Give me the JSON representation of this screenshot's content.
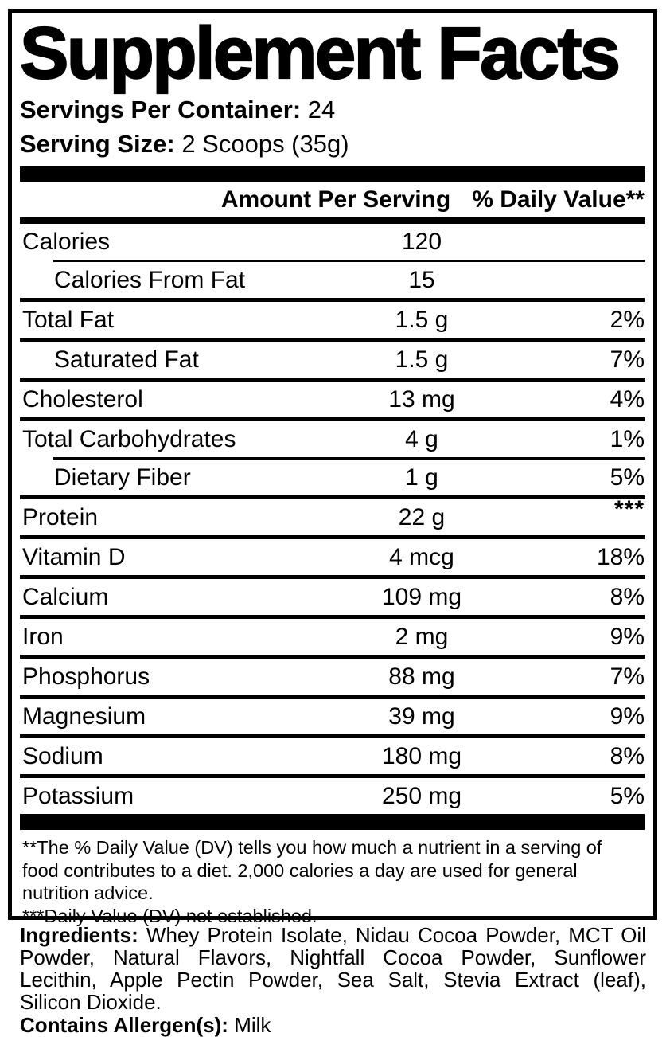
{
  "colors": {
    "text": "#000000",
    "background": "#ffffff"
  },
  "panel": {
    "title": "Supplement Facts",
    "servings_per_container_label": "Servings Per Container:",
    "servings_per_container_value": "24",
    "serving_size_label": "Serving Size:",
    "serving_size_value": "2 Scoops (35g)"
  },
  "table": {
    "amount_header": "Amount Per Serving",
    "dv_header": "% Daily Value**",
    "rows": [
      {
        "label": "Calories",
        "amount": "120",
        "dv": "",
        "indent": false,
        "dv_sup": false,
        "sep": "indent"
      },
      {
        "label": "Calories From Fat",
        "amount": "15",
        "dv": "",
        "indent": true,
        "dv_sup": false,
        "sep": "full"
      },
      {
        "label": "Total Fat",
        "amount": "1.5 g",
        "dv": "2%",
        "indent": false,
        "dv_sup": false,
        "sep": "full"
      },
      {
        "label": "Saturated Fat",
        "amount": "1.5 g",
        "dv": "7%",
        "indent": true,
        "dv_sup": false,
        "sep": "full"
      },
      {
        "label": "Cholesterol",
        "amount": "13 mg",
        "dv": "4%",
        "indent": false,
        "dv_sup": false,
        "sep": "full"
      },
      {
        "label": "Total Carbohydrates",
        "amount": "4 g",
        "dv": "1%",
        "indent": false,
        "dv_sup": false,
        "sep": "indent"
      },
      {
        "label": "Dietary Fiber",
        "amount": "1 g",
        "dv": "5%",
        "indent": true,
        "dv_sup": false,
        "sep": "full"
      },
      {
        "label": "Protein",
        "amount": "22 g",
        "dv": "***",
        "indent": false,
        "dv_sup": true,
        "sep": "full"
      },
      {
        "label": "Vitamin D",
        "amount": "4 mcg",
        "dv": "18%",
        "indent": false,
        "dv_sup": false,
        "sep": "full"
      },
      {
        "label": "Calcium",
        "amount": "109 mg",
        "dv": "8%",
        "indent": false,
        "dv_sup": false,
        "sep": "full"
      },
      {
        "label": "Iron",
        "amount": "2 mg",
        "dv": "9%",
        "indent": false,
        "dv_sup": false,
        "sep": "full"
      },
      {
        "label": "Phosphorus",
        "amount": "88 mg",
        "dv": "7%",
        "indent": false,
        "dv_sup": false,
        "sep": "full"
      },
      {
        "label": "Magnesium",
        "amount": "39 mg",
        "dv": "9%",
        "indent": false,
        "dv_sup": false,
        "sep": "full"
      },
      {
        "label": "Sodium",
        "amount": "180 mg",
        "dv": "8%",
        "indent": false,
        "dv_sup": false,
        "sep": "full"
      },
      {
        "label": "Potassium",
        "amount": "250 mg",
        "dv": "5%",
        "indent": false,
        "dv_sup": false,
        "sep": "none"
      }
    ]
  },
  "footnotes": {
    "daily_value_note": "**The % Daily Value (DV) tells you how much a nutrient in a serving of food contributes to a diet. 2,000 calories a day are used for general nutrition advice.",
    "not_established_note": "***Daily Value (DV) not established."
  },
  "ingredients": {
    "label": "Ingredients:",
    "text": "Whey Protein Isolate, Nidau Cocoa Powder, MCT Oil Powder, Natural Flavors, Nightfall Cocoa Powder, Sunflower Lecithin, Apple Pectin Powder, Sea Salt, Stevia Extract (leaf), Silicon Dioxide.",
    "allergen_label": "Contains Allergen(s):",
    "allergen_value": "Milk"
  }
}
